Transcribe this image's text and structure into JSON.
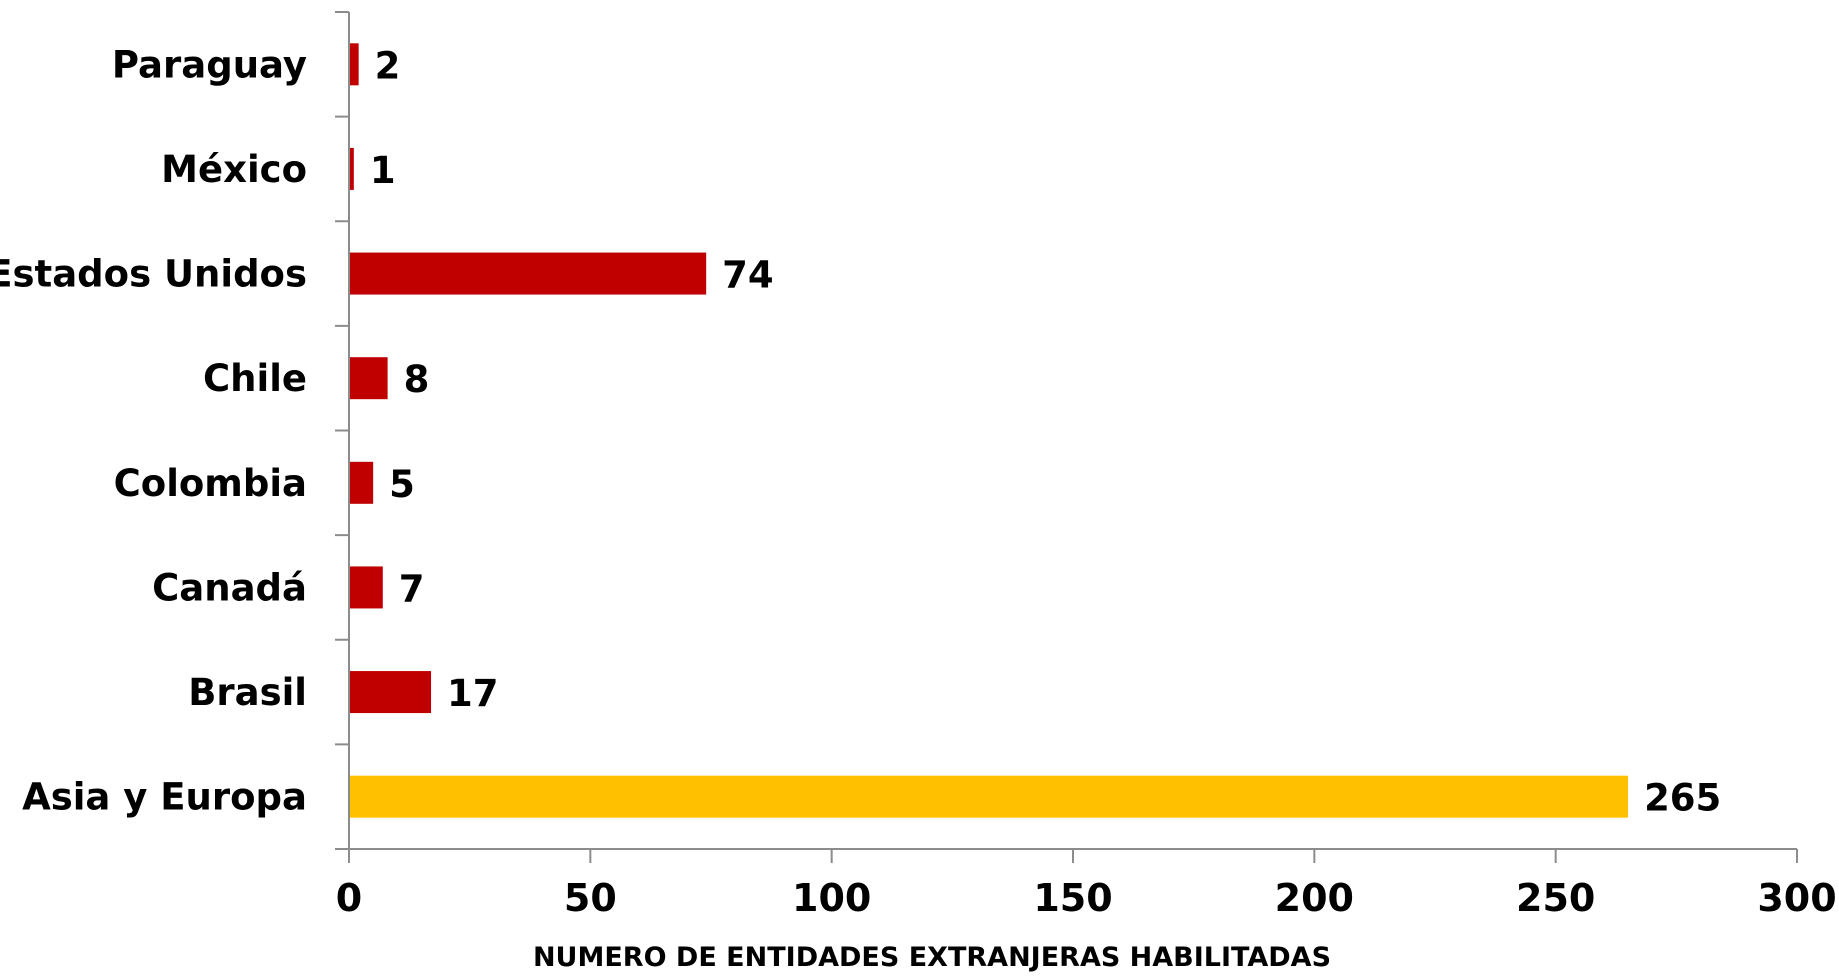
{
  "chart_data": {
    "type": "bar",
    "orientation": "horizontal",
    "categories": [
      "Paraguay",
      "México",
      "Estados Unidos",
      "Chile",
      "Colombia",
      "Canadá",
      "Brasil",
      "Asia y Europa"
    ],
    "values": [
      2,
      1,
      74,
      8,
      5,
      7,
      17,
      265
    ],
    "bar_colors": [
      "#c00000",
      "#c00000",
      "#c00000",
      "#c00000",
      "#c00000",
      "#c00000",
      "#c00000",
      "#ffc000"
    ],
    "xlabel": "NUMERO DE ENTIDADES EXTRANJERAS HABILITADAS",
    "ylabel": "",
    "title": "",
    "xlim": [
      0,
      300
    ],
    "xticks": [
      0,
      50,
      100,
      150,
      200,
      250,
      300
    ],
    "grid": false,
    "legend": "none",
    "data_labels": true
  }
}
